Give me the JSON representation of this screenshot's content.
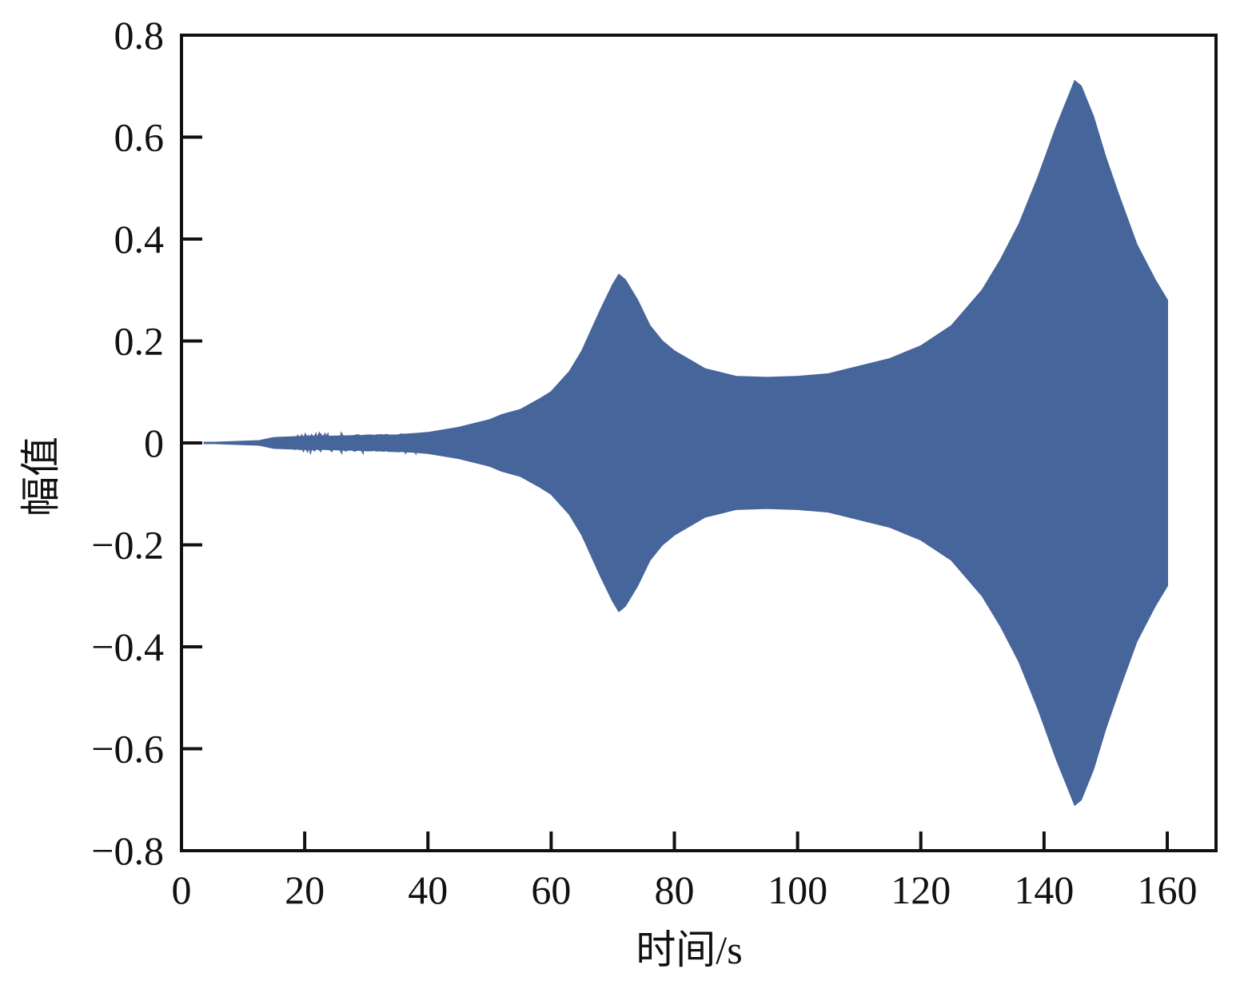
{
  "chart_data": {
    "type": "area",
    "title": "",
    "xlabel": "时间/s",
    "ylabel": "幅值",
    "xlim": [
      0,
      168
    ],
    "ylim": [
      -0.8,
      0.8
    ],
    "xticks": [
      0,
      20,
      40,
      60,
      80,
      100,
      120,
      140,
      160
    ],
    "xtick_labels": [
      "0",
      "20",
      "40",
      "60",
      "80",
      "100",
      "120",
      "140",
      "160"
    ],
    "yticks": [
      0.8,
      0.6,
      0.4,
      0.2,
      0,
      -0.2,
      -0.4,
      -0.6,
      -0.8
    ],
    "ytick_labels": [
      "0.8",
      "0.6",
      "0.4",
      "0.2",
      "0",
      "−0.2",
      "−0.4",
      "−0.6",
      "−0.8"
    ],
    "grid": false,
    "color": "#46659a",
    "description_of_series": "symmetric oscillation envelope (upper amplitude)",
    "series": [
      {
        "x": [
          3.6,
          12.6,
          15,
          19.5,
          25,
          30,
          35,
          40,
          45,
          50,
          52,
          55,
          58,
          60,
          63,
          65,
          68,
          70,
          71,
          72,
          74,
          76,
          78,
          80,
          85,
          90,
          95,
          100,
          105,
          110,
          115,
          120,
          125,
          130,
          133,
          136,
          139,
          142,
          144,
          145,
          146,
          148,
          150,
          152,
          155,
          158,
          160
        ],
        "y": [
          0,
          0.004,
          0.01,
          0.012,
          0.012,
          0.013,
          0.015,
          0.02,
          0.03,
          0.045,
          0.055,
          0.065,
          0.085,
          0.1,
          0.14,
          0.18,
          0.26,
          0.31,
          0.33,
          0.32,
          0.28,
          0.23,
          0.2,
          0.18,
          0.145,
          0.13,
          0.128,
          0.13,
          0.135,
          0.15,
          0.165,
          0.19,
          0.23,
          0.3,
          0.36,
          0.43,
          0.52,
          0.62,
          0.68,
          0.71,
          0.7,
          0.64,
          0.56,
          0.49,
          0.39,
          0.32,
          0.28
        ]
      }
    ]
  }
}
